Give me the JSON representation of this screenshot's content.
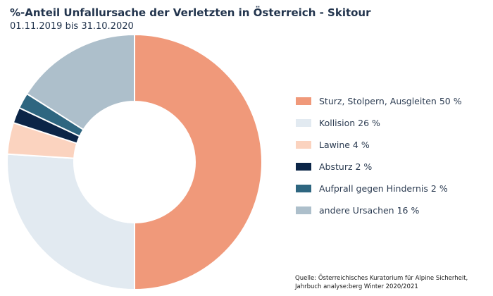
{
  "title": "%-Anteil Unfallursache der Verletzten in Österreich - Skitour",
  "subtitle": "01.11.2019 bis 31.10.2020",
  "source": {
    "line1": "Quelle: Österreichisches Kuratorium für Alpine Sicherheit,",
    "line2": "Jahrbuch analyse:berg Winter 2020/2021"
  },
  "chart_data": {
    "type": "pie",
    "style": "donut",
    "legend_position": "right",
    "series": [
      {
        "label": "Sturz, Stolpern, Ausgleiten 50 %",
        "value": 50,
        "color": "#f0997a"
      },
      {
        "label": "Kollision 26 %",
        "value": 26,
        "color": "#e2eaf1"
      },
      {
        "label": "Lawine 4 %",
        "value": 4,
        "color": "#fbd3bf"
      },
      {
        "label": "Absturz 2 %",
        "value": 2,
        "color": "#0b2547"
      },
      {
        "label": "Aufprall gegen Hindernis 2 %",
        "value": 2,
        "color": "#2e6680"
      },
      {
        "label": "andere Ursachen 16 %",
        "value": 16,
        "color": "#adbfcb"
      }
    ]
  }
}
